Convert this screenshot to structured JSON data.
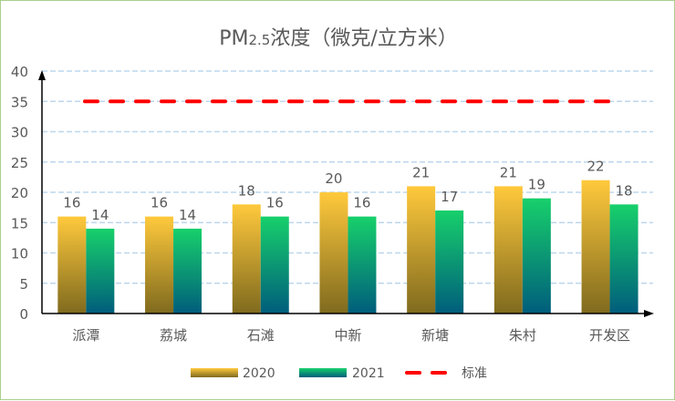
{
  "chart_data": {
    "type": "bar",
    "title": "PM2.5浓度（微克/立方米）",
    "title_parts": {
      "pm": "PM",
      "sub": "2.5",
      "rest": "浓度（微克/立方米）"
    },
    "categories": [
      "派潭",
      "荔城",
      "石滩",
      "中新",
      "新塘",
      "朱村",
      "开发区"
    ],
    "series": [
      {
        "name": "2020",
        "values": [
          16,
          16,
          18,
          20,
          21,
          21,
          22
        ],
        "gradient": [
          "#ffc93c",
          "#7f6a1e"
        ]
      },
      {
        "name": "2021",
        "values": [
          14,
          14,
          16,
          16,
          17,
          19,
          18
        ],
        "gradient": [
          "#17d06b",
          "#005d7c"
        ]
      }
    ],
    "reference_line": {
      "name": "标准",
      "value": 35,
      "color": "#ff0000"
    },
    "ylim": [
      0,
      40
    ],
    "yticks": [
      0,
      5,
      10,
      15,
      20,
      25,
      30,
      35,
      40
    ],
    "grid": true,
    "legend": "bottom"
  }
}
